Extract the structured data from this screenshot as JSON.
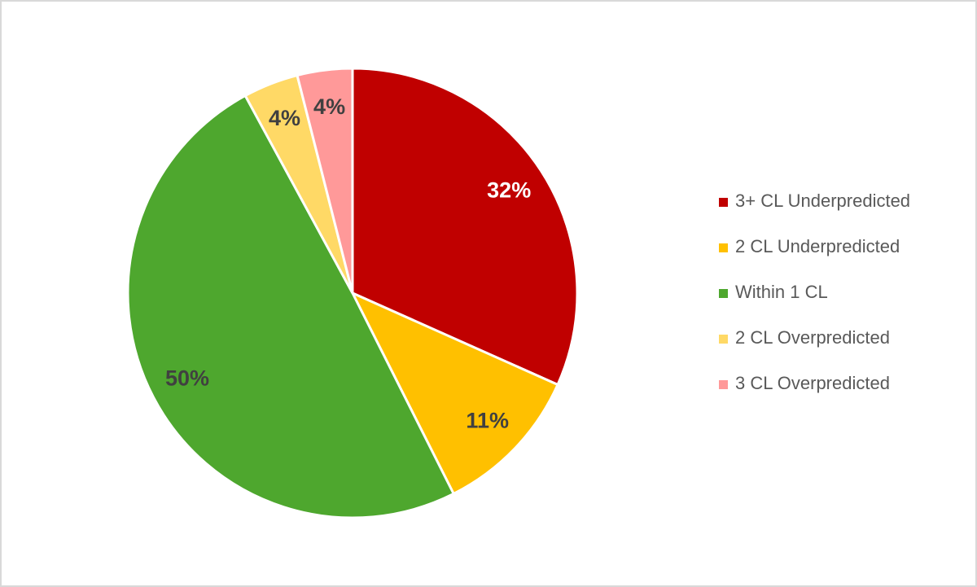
{
  "chart_data": {
    "type": "pie",
    "categories": [
      "3+ CL Underpredicted",
      "2 CL Underpredicted",
      "Within 1 CL",
      "2 CL Overpredicted",
      "3 CL Overpredicted"
    ],
    "values": [
      32,
      11,
      50,
      4,
      4
    ],
    "value_labels": [
      "32%",
      "11%",
      "50%",
      "4%",
      "4%"
    ],
    "colors": [
      "#c00000",
      "#ffc000",
      "#4ea72e",
      "#ffd966",
      "#ff9999"
    ],
    "legend": "right"
  }
}
